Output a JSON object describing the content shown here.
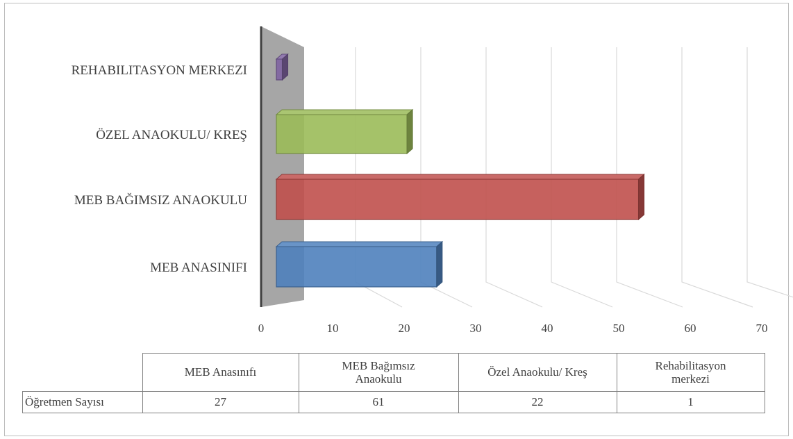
{
  "chart_data": {
    "type": "bar",
    "orientation": "horizontal",
    "three_d": true,
    "categories": [
      "MEB ANASINIFI",
      "MEB BAĞIMSIZ ANAOKULU",
      "ÖZEL ANAOKULU/ KREŞ",
      "REHABILITASYON MERKEZI"
    ],
    "values": [
      27,
      61,
      22,
      1
    ],
    "bar_colors": [
      "#4f81bd",
      "#c0504d",
      "#9bbb59",
      "#8064a2"
    ],
    "xlim": [
      0,
      70
    ],
    "ticks": [
      "0",
      "10",
      "20",
      "30",
      "40",
      "50",
      "60",
      "70"
    ],
    "grid": true,
    "legend": "none"
  },
  "table": {
    "headers": [
      "MEB Anasınıfı",
      "MEB Bağımsız Anaokulu",
      "Özel Anaokulu/ Kreş",
      "Rehabilitasyon merkezi"
    ],
    "row_label": "Öğretmen Sayısı",
    "values": [
      "27",
      "61",
      "22",
      "1"
    ]
  }
}
